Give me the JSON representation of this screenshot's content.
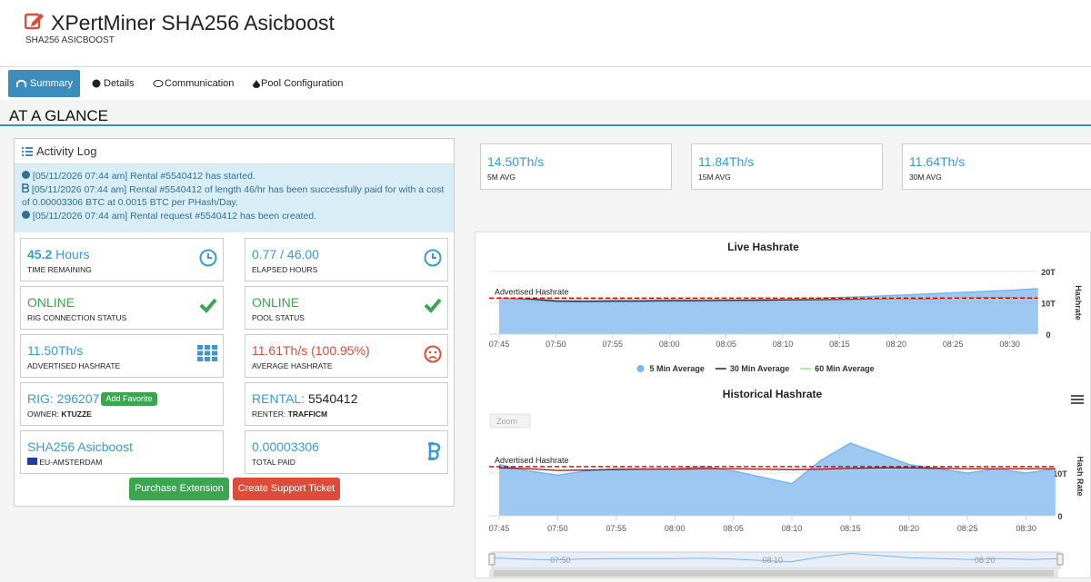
{
  "header": {
    "title": "XPertMiner SHA256 Asicboost",
    "subtitle": "SHA256 ASICBOOST"
  },
  "tabs": [
    "Summary",
    "Details",
    "Communication",
    "Pool Configuration"
  ],
  "section": "AT A GLANCE",
  "activity_log": {
    "title": "Activity Log",
    "entries": [
      "[05/11/2026 07:44 am] Rental #5540412 has started.",
      "[05/11/2026 07:44 am] Rental #5540412 of length 46/hr has been successfully paid for with a cost of 0.00003306 BTC at 0.0015 BTC per PHash/Day.",
      "[05/11/2026 07:44 am] Rental request #5540412 has been created."
    ]
  },
  "cards": [
    {
      "value": "45.2",
      "unit": "Hours",
      "label": "TIME REMAINING"
    },
    {
      "value": "0.77 / 46.00",
      "label": "ELAPSED HOURS"
    },
    {
      "value": "ONLINE",
      "label": "RIG CONNECTION STATUS"
    },
    {
      "value": "ONLINE",
      "label": "POOL STATUS"
    },
    {
      "value": "11.50Th/s",
      "label": "ADVERTISED HASHRATE"
    },
    {
      "value": "11.61Th/s (100.95%)",
      "label": "AVERAGE HASHRATE"
    },
    {
      "value": "RIG: 296207",
      "button": "Add Favorite",
      "label": "OWNER:",
      "detail": "KTUZZE"
    },
    {
      "value": "RENTAL:",
      "number": "5540412",
      "label": "RENTER:",
      "detail": "TRAFFICM"
    },
    {
      "value": "SHA256 Asicboost",
      "label": "EU-AMSTERDAM"
    },
    {
      "value": "0.00003306",
      "label": "TOTAL PAID"
    }
  ],
  "buttons": [
    "Purchase Extension",
    "Create Support Ticket"
  ],
  "averages": [
    {
      "value": "14.50Th/s",
      "label": "5M AVG"
    },
    {
      "value": "11.84Th/s",
      "label": "15M AVG"
    },
    {
      "value": "11.64Th/s",
      "label": "30M AVG"
    }
  ],
  "chart_data": [
    {
      "type": "area",
      "title": "Live Hashrate",
      "y_label": "Hashrate",
      "categories": [
        "07:45",
        null,
        "07:50",
        null,
        "07:55",
        null,
        "08:00",
        null,
        "08:05",
        null,
        "08:10",
        null,
        "08:15",
        null,
        "08:20",
        null,
        "08:25",
        null,
        "08:30",
        null
      ],
      "series": [
        {
          "name": "5 Min Average",
          "color": "#7cb5ec",
          "kind": "area",
          "values": [
            11.6,
            11.0,
            10.3,
            10.2,
            10.3,
            10.4,
            10.5,
            10.6,
            10.7,
            10.9,
            11.1,
            11.4,
            11.7,
            12.0,
            12.4,
            12.8,
            13.2,
            13.6,
            14.0,
            14.5
          ]
        },
        {
          "name": "30 Min Average",
          "color": "#222222",
          "kind": "line",
          "values": [
            11.6,
            11.3,
            10.6,
            10.5,
            10.6,
            10.6,
            10.7,
            10.7,
            10.8,
            10.8,
            10.9,
            11.0,
            11.1,
            11.2,
            11.3,
            11.4,
            11.5,
            11.6,
            11.6,
            11.6
          ]
        },
        {
          "name": "60 Min Average",
          "color": "#90ed7d",
          "kind": "line",
          "values": [
            11.6,
            11.5,
            11.3,
            11.2,
            11.2,
            11.2,
            11.2,
            11.3,
            11.3,
            11.3,
            11.3,
            11.3,
            11.4,
            11.4,
            11.4,
            11.5,
            11.5,
            11.5,
            11.5,
            11.6
          ]
        }
      ],
      "reference": {
        "value": 11.5,
        "label": "Advertised Hashrate",
        "color": "#cc0000"
      },
      "ylim": [
        0,
        20
      ],
      "yticks": [
        0,
        {
          "value": 10,
          "label": "10T"
        },
        {
          "value": 20,
          "label": "20T"
        }
      ],
      "grid": true,
      "legend": "bottom"
    },
    {
      "type": "area",
      "title": "Historical Hashrate",
      "y_label": "Hash Rate",
      "zoom": "Zoom",
      "categories": [
        "07:45",
        null,
        "07:50",
        null,
        "07:55",
        null,
        "08:00",
        null,
        "08:05",
        null,
        "08:10",
        null,
        "08:15",
        null,
        "08:20",
        null,
        "08:25",
        null,
        "08:30",
        null
      ],
      "series": [
        {
          "color": "#7cb5ec",
          "kind": "area",
          "values": [
            12,
            10.5,
            9.5,
            10.5,
            11,
            11,
            11,
            11.5,
            10.5,
            9,
            7.5,
            13,
            17,
            14.5,
            12,
            11,
            10,
            11,
            10,
            11
          ]
        },
        {
          "color": "#8b1a1a",
          "kind": "line",
          "values": [
            11.2,
            11.0,
            10.6,
            10.7,
            10.8,
            10.9,
            10.9,
            11.0,
            11.0,
            10.9,
            10.8,
            10.9,
            11.1,
            11.2,
            11.2,
            11.1,
            11.0,
            11.0,
            11.0,
            11.0
          ]
        }
      ],
      "reference": {
        "value": 11.5,
        "label": "Advertised Hashrate",
        "color": "#cc0000"
      },
      "ylim": [
        0,
        18.5
      ],
      "yticks": [
        0,
        {
          "value": 10,
          "label": "10T"
        }
      ],
      "grid": true,
      "navigator": {
        "labels": [
          "07:50",
          "08:10",
          "08:20"
        ]
      }
    }
  ]
}
